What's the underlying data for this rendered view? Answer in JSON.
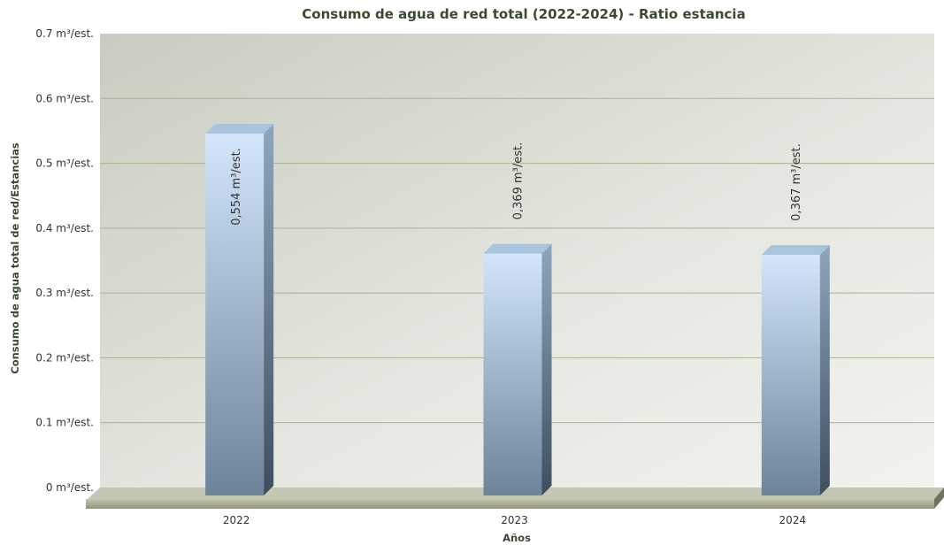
{
  "chart_data": {
    "type": "bar",
    "title": "Consumo de agua de red total (2022-2024) - Ratio estancia",
    "xlabel": "Años",
    "ylabel": "Consumo de agua total de red/Estancias",
    "categories": [
      "2022",
      "2023",
      "2024"
    ],
    "values": [
      0.554,
      0.369,
      0.367
    ],
    "value_labels": [
      "0,554 m³/est.",
      "0,369 m³/est.",
      "0,367 m³/est."
    ],
    "ylim": [
      0,
      0.7
    ],
    "yticks": [
      {
        "value": 0,
        "label": "0 m³/est."
      },
      {
        "value": 0.1,
        "label": "0.1 m³/est."
      },
      {
        "value": 0.2,
        "label": "0.2 m³/est."
      },
      {
        "value": 0.3,
        "label": "0.3 m³/est."
      },
      {
        "value": 0.4,
        "label": "0.4 m³/est."
      },
      {
        "value": 0.5,
        "label": "0.5 m³/est."
      },
      {
        "value": 0.6,
        "label": "0.6 m³/est."
      },
      {
        "value": 0.7,
        "label": "0.7 m³/est."
      }
    ],
    "grid": true,
    "legend": "none",
    "colors": {
      "bar_light": "#d3e6fb",
      "bar_dark": "#6d8399",
      "bar_side": "#4c5f72",
      "bar_top": "#a9c4dd",
      "plot_bg_light": "#eef0ea",
      "plot_bg_dark": "#c6cabd",
      "gridline": "#a9b48d",
      "floor": "#a9ae96",
      "title": "#3b4a2f",
      "text": "#333333"
    }
  }
}
